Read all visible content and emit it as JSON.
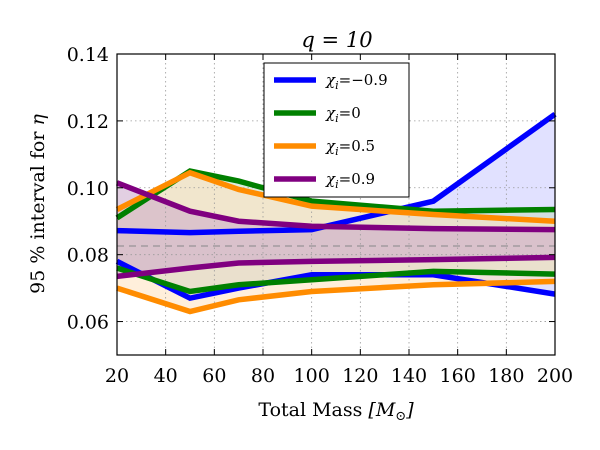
{
  "chart_data": {
    "type": "area",
    "title": "q = 10",
    "xlabel": "Total Mass [M_⊙]",
    "ylabel": "95 % interval for η",
    "xlim": [
      20,
      200
    ],
    "ylim": [
      0.05,
      0.14
    ],
    "xticks": [
      20,
      40,
      60,
      80,
      100,
      120,
      140,
      160,
      180,
      200
    ],
    "yticks": [
      0.06,
      0.08,
      0.1,
      0.12,
      0.14
    ],
    "ytick_labels": [
      "0.06",
      "0.08",
      "0.10",
      "0.12",
      "0.14"
    ],
    "grid": true,
    "reference_line": 0.0826,
    "legend": {
      "placement": "top-center"
    },
    "series": [
      {
        "name": "χ_i = −0.9",
        "label_symbol": "χ",
        "label_sub": "i",
        "label_value": "=−0.9",
        "color": "#0000ff",
        "fill": "#c8c8ff",
        "x": [
          20,
          50,
          70,
          100,
          150,
          200
        ],
        "upper": [
          0.0872,
          0.0866,
          0.087,
          0.0875,
          0.096,
          0.122
        ],
        "lower": [
          0.078,
          0.067,
          0.07,
          0.074,
          0.074,
          0.0682
        ]
      },
      {
        "name": "χ_i = 0",
        "label_symbol": "χ",
        "label_sub": "i",
        "label_value": "=0",
        "color": "#008000",
        "fill": "#c4dcc4",
        "x": [
          20,
          50,
          70,
          100,
          150,
          200
        ],
        "upper": [
          0.091,
          0.105,
          0.102,
          0.096,
          0.093,
          0.0935
        ],
        "lower": [
          0.076,
          0.069,
          0.071,
          0.0725,
          0.075,
          0.0742
        ]
      },
      {
        "name": "χ_i = 0.5",
        "label_symbol": "χ",
        "label_sub": "i",
        "label_value": "=0.5",
        "color": "#ff8c00",
        "fill": "#ffe2bd",
        "x": [
          20,
          50,
          70,
          100,
          150,
          200
        ],
        "upper": [
          0.0935,
          0.1045,
          0.0995,
          0.0945,
          0.092,
          0.09
        ],
        "lower": [
          0.07,
          0.063,
          0.0665,
          0.069,
          0.071,
          0.072
        ]
      },
      {
        "name": "χ_i = 0.9",
        "label_symbol": "χ",
        "label_sub": "i",
        "label_value": "=0.9",
        "color": "#800080",
        "fill": "#caa7ca",
        "x": [
          20,
          50,
          70,
          100,
          150,
          200
        ],
        "upper": [
          0.1015,
          0.093,
          0.09,
          0.0885,
          0.0878,
          0.0875
        ],
        "lower": [
          0.0735,
          0.076,
          0.0775,
          0.078,
          0.0785,
          0.0792
        ]
      }
    ]
  }
}
